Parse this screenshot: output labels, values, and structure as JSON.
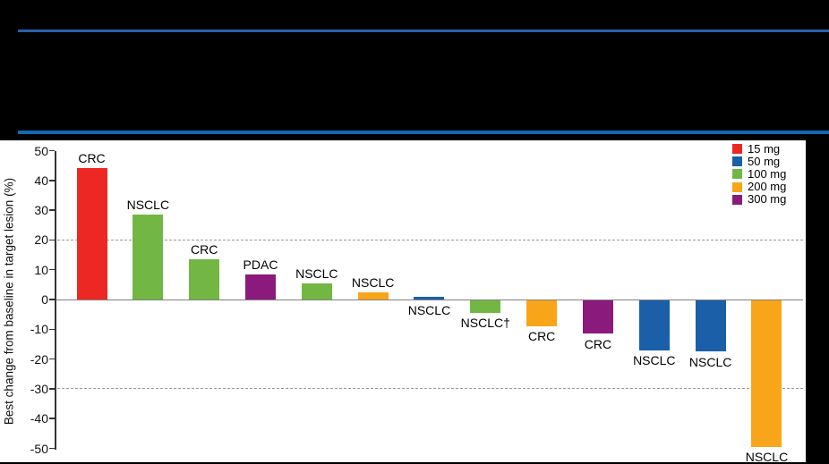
{
  "header": {
    "top_line_color": "#2D5FA9",
    "mid_line_color": "#0F69B4",
    "background_color": "#000000"
  },
  "chart_data": {
    "type": "bar",
    "subtype": "waterfall",
    "title": "",
    "xlabel": "",
    "ylabel": "Best change from baseline in target lesion (%)",
    "ylim": [
      -50,
      50
    ],
    "yticks": [
      50,
      40,
      30,
      20,
      10,
      0,
      -10,
      -20,
      -30,
      -40,
      -50
    ],
    "grid": "dashed reference lines only",
    "reference_lines": [
      {
        "y": 20,
        "style": "dashed"
      },
      {
        "y": -30,
        "style": "dashed"
      },
      {
        "y": 0,
        "style": "solid"
      }
    ],
    "legend": {
      "position": "top-right",
      "entries": [
        {
          "label": "15 mg",
          "color": "#EC2724"
        },
        {
          "label": "50 mg",
          "color": "#1A5FA8"
        },
        {
          "label": "100 mg",
          "color": "#72B744"
        },
        {
          "label": "200 mg",
          "color": "#F9A51A"
        },
        {
          "label": "300 mg",
          "color": "#8B1A7D"
        }
      ]
    },
    "bars": [
      {
        "label": "CRC",
        "dose": "15 mg",
        "value": 44,
        "label_position": "above"
      },
      {
        "label": "NSCLC",
        "dose": "100 mg",
        "value": 28.5,
        "label_position": "above"
      },
      {
        "label": "CRC",
        "dose": "100 mg",
        "value": 13.5,
        "label_position": "above"
      },
      {
        "label": "PDAC",
        "dose": "300 mg",
        "value": 8.5,
        "label_position": "above"
      },
      {
        "label": "NSCLC",
        "dose": "100 mg",
        "value": 5.5,
        "label_position": "above"
      },
      {
        "label": "NSCLC",
        "dose": "200 mg",
        "value": 2.5,
        "label_position": "above"
      },
      {
        "label": "NSCLC",
        "dose": "50 mg",
        "value": 1,
        "label_position": "below"
      },
      {
        "label": "NSCLC†",
        "dose": "100 mg",
        "value": -4.5,
        "label_position": "below"
      },
      {
        "label": "CRC",
        "dose": "200 mg",
        "value": -9,
        "label_position": "below"
      },
      {
        "label": "CRC",
        "dose": "300 mg",
        "value": -11.5,
        "label_position": "below"
      },
      {
        "label": "NSCLC",
        "dose": "50 mg",
        "value": -17,
        "label_position": "below"
      },
      {
        "label": "NSCLC",
        "dose": "50 mg",
        "value": -17.5,
        "label_position": "below"
      },
      {
        "label": "NSCLC",
        "dose": "200 mg",
        "value": -49.5,
        "label_position": "below"
      }
    ]
  }
}
